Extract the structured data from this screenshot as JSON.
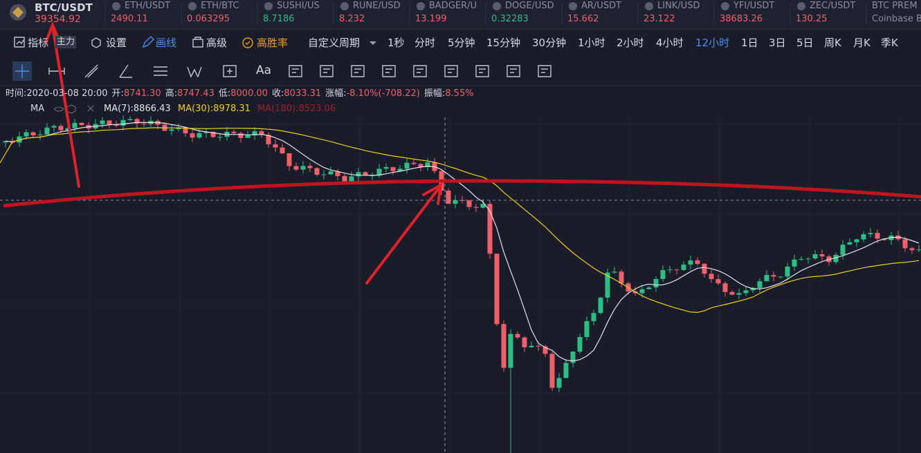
{
  "header": {
    "symbol": "BTC/USDT",
    "price": "39354.92",
    "tickers": [
      {
        "symbol": "ETH/USDT",
        "price": "2490.11",
        "color": "#f0606a"
      },
      {
        "symbol": "ETH/BTC",
        "price": "0.063295",
        "color": "#f0606a"
      },
      {
        "symbol": "SUSHI/US",
        "price": "8.7186",
        "color": "#2ebd85"
      },
      {
        "symbol": "RUNE/USD",
        "price": "8.232",
        "color": "#f0606a"
      },
      {
        "symbol": "BADGER/U",
        "price": "13.199",
        "color": "#f0606a"
      },
      {
        "symbol": "DOGE/USD",
        "price": "0.32283",
        "color": "#2ebd85"
      },
      {
        "symbol": "AR/USDT",
        "price": "15.662",
        "color": "#f0606a"
      },
      {
        "symbol": "LINK/USD",
        "price": "23.122",
        "color": "#f0606a"
      },
      {
        "symbol": "YFI/USDT",
        "price": "38683.26",
        "color": "#f0606a"
      },
      {
        "symbol": "ZEC/USDT",
        "price": "130.25",
        "color": "#f0606a"
      },
      {
        "symbol": "BTC PREM",
        "price": "Coinbase B",
        "color": "#8a8f9c"
      }
    ]
  },
  "toolbar": {
    "items": [
      {
        "label": "指标",
        "color": "#d6d9e0"
      },
      {
        "label": "主力",
        "color": "#d6d9e0"
      },
      {
        "label": "设置",
        "color": "#d6d9e0"
      },
      {
        "label": "画线",
        "color": "#4c8ef5"
      },
      {
        "label": "高级",
        "color": "#d6d9e0"
      },
      {
        "label": "高胜率",
        "color": "#f0a020"
      },
      {
        "label": "自定义周期",
        "color": "#d6d9e0"
      }
    ],
    "periods": [
      "1秒",
      "分时",
      "5分钟",
      "15分钟",
      "30分钟",
      "1小时",
      "2小时",
      "4小时",
      "12小时",
      "1日",
      "3日",
      "5日",
      "周K",
      "月K",
      "季K"
    ],
    "active_period": 8
  },
  "drawing_tools": {
    "text_tool": "Aa"
  },
  "info": {
    "items": [
      {
        "label": "时间:",
        "value": "2020-03-08 20:00",
        "color": "#d6d9e0"
      },
      {
        "label": "开:",
        "value": "8741.30",
        "color": "#f0606a"
      },
      {
        "label": "高:",
        "value": "8747.43",
        "color": "#f0606a"
      },
      {
        "label": "低:",
        "value": "8000.00",
        "color": "#f0606a"
      },
      {
        "label": "收:",
        "value": "8033.31",
        "color": "#f0606a"
      },
      {
        "label": "涨幅:",
        "value": "-8.10%(-708.22)",
        "color": "#f0606a"
      },
      {
        "label": "振幅:",
        "value": "8.55%",
        "color": "#f0606a"
      }
    ]
  },
  "indicators": {
    "name": "MA",
    "lines": [
      {
        "label": "MA(7):8866.43",
        "color": "#e4e4ea"
      },
      {
        "label": "MA(30):8978.31",
        "color": "#f0d020"
      },
      {
        "label": "MA(180):8523.06",
        "color": "#a0202a"
      }
    ]
  }
}
